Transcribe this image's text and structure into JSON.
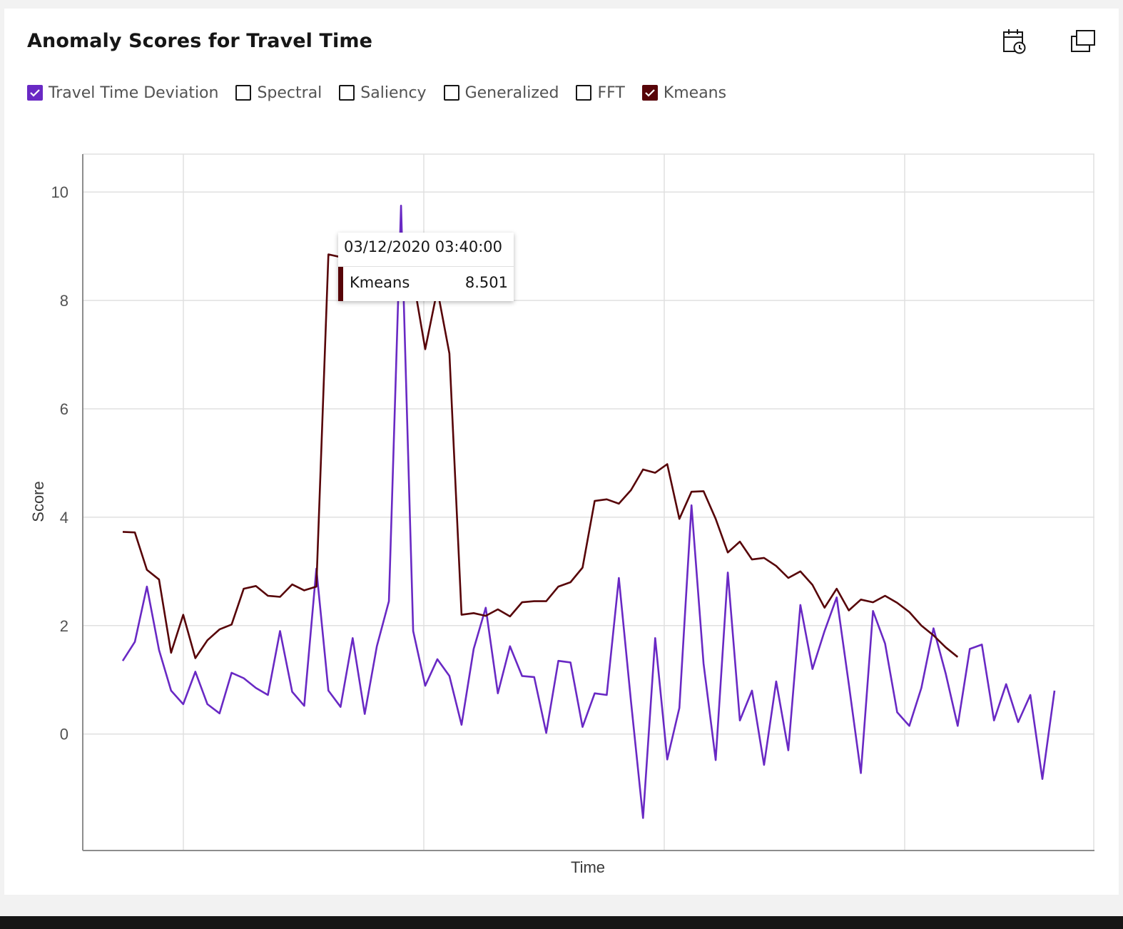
{
  "card": {
    "title": "Anomaly Scores for Travel Time",
    "icons": {
      "calendar": "calendar-clock-icon",
      "expand": "expand-window-icon"
    }
  },
  "legend": [
    {
      "label": "Travel Time Deviation",
      "checked": true,
      "color": "#6929c4"
    },
    {
      "label": "Spectral",
      "checked": false,
      "color": "#161616"
    },
    {
      "label": "Saliency",
      "checked": false,
      "color": "#161616"
    },
    {
      "label": "Generalized",
      "checked": false,
      "color": "#161616"
    },
    {
      "label": "FFT",
      "checked": false,
      "color": "#161616"
    },
    {
      "label": "Kmeans",
      "checked": true,
      "color": "#570408"
    }
  ],
  "tooltip": {
    "date": "03/12/2020 03:40:00",
    "series": "Kmeans",
    "value": "8.501",
    "color": "#570408"
  },
  "chart_data": {
    "type": "line",
    "xlabel": "Time",
    "ylabel": "Score",
    "ylim": [
      -2.15,
      10.7
    ],
    "yticks": [
      0,
      2,
      4,
      6,
      8,
      10
    ],
    "grid": true,
    "legend_position": "top-left",
    "series": [
      {
        "name": "Travel Time Deviation",
        "color": "#6929c4",
        "points": [
          [
            0,
            1.35
          ],
          [
            1,
            1.7
          ],
          [
            2,
            2.72
          ],
          [
            3,
            1.55
          ],
          [
            4,
            0.8
          ],
          [
            5,
            0.55
          ],
          [
            6,
            1.15
          ],
          [
            7,
            0.55
          ],
          [
            8,
            0.38
          ],
          [
            9,
            1.13
          ],
          [
            10,
            1.03
          ],
          [
            11,
            0.85
          ],
          [
            12,
            0.72
          ],
          [
            13,
            1.9
          ],
          [
            14,
            0.78
          ],
          [
            15,
            0.52
          ],
          [
            16,
            3.05
          ],
          [
            17,
            0.8
          ],
          [
            18,
            0.5
          ],
          [
            19,
            1.77
          ],
          [
            20,
            0.37
          ],
          [
            21,
            1.62
          ],
          [
            22,
            2.45
          ],
          [
            23,
            9.75
          ],
          [
            24,
            1.9
          ],
          [
            25,
            0.89
          ],
          [
            26,
            1.38
          ],
          [
            27,
            1.07
          ],
          [
            28,
            0.17
          ],
          [
            29,
            1.57
          ],
          [
            30,
            2.33
          ],
          [
            31,
            0.75
          ],
          [
            32,
            1.62
          ],
          [
            33,
            1.07
          ],
          [
            34,
            1.05
          ],
          [
            35,
            0.02
          ],
          [
            36,
            1.35
          ],
          [
            37,
            1.32
          ],
          [
            38,
            0.13
          ],
          [
            39,
            0.75
          ],
          [
            40,
            0.72
          ],
          [
            41,
            2.88
          ],
          [
            42,
            0.6
          ],
          [
            43,
            -1.55
          ],
          [
            44,
            1.77
          ],
          [
            45,
            -0.47
          ],
          [
            46,
            0.48
          ],
          [
            47,
            4.22
          ],
          [
            48,
            1.3
          ],
          [
            49,
            -0.48
          ],
          [
            50,
            2.98
          ],
          [
            51,
            0.25
          ],
          [
            52,
            0.8
          ],
          [
            53,
            -0.57
          ],
          [
            54,
            0.97
          ],
          [
            55,
            -0.3
          ],
          [
            56,
            2.38
          ],
          [
            57,
            1.2
          ],
          [
            58,
            1.9
          ],
          [
            59,
            2.52
          ],
          [
            60,
            0.92
          ],
          [
            61,
            -0.72
          ],
          [
            62,
            2.27
          ],
          [
            63,
            1.67
          ],
          [
            64,
            0.4
          ],
          [
            65,
            0.15
          ],
          [
            66,
            0.85
          ],
          [
            67,
            1.95
          ],
          [
            68,
            1.12
          ],
          [
            69,
            0.15
          ],
          [
            70,
            1.57
          ],
          [
            71,
            1.65
          ],
          [
            72,
            0.25
          ],
          [
            73,
            0.92
          ],
          [
            74,
            0.22
          ],
          [
            75,
            0.72
          ],
          [
            76,
            -0.83
          ],
          [
            77,
            0.8
          ]
        ]
      },
      {
        "name": "Kmeans",
        "color": "#570408",
        "points": [
          [
            0,
            3.73
          ],
          [
            1,
            3.72
          ],
          [
            2,
            3.03
          ],
          [
            3,
            2.85
          ],
          [
            4,
            1.5
          ],
          [
            5,
            2.2
          ],
          [
            6,
            1.4
          ],
          [
            7,
            1.73
          ],
          [
            8,
            1.93
          ],
          [
            9,
            2.02
          ],
          [
            10,
            2.68
          ],
          [
            11,
            2.73
          ],
          [
            12,
            2.55
          ],
          [
            13,
            2.53
          ],
          [
            14,
            2.76
          ],
          [
            15,
            2.65
          ],
          [
            16,
            2.72
          ],
          [
            17,
            8.85
          ],
          [
            18,
            8.8
          ],
          [
            19,
            8.65
          ],
          [
            20,
            8.57
          ],
          [
            21,
            8.45
          ],
          [
            22,
            8.45
          ],
          [
            23,
            8.5
          ],
          [
            24,
            8.4
          ],
          [
            25,
            7.1
          ],
          [
            26,
            8.2
          ],
          [
            27,
            7.02
          ],
          [
            28,
            2.2
          ],
          [
            29,
            2.23
          ],
          [
            30,
            2.18
          ],
          [
            31,
            2.3
          ],
          [
            32,
            2.17
          ],
          [
            33,
            2.43
          ],
          [
            34,
            2.45
          ],
          [
            35,
            2.45
          ],
          [
            36,
            2.72
          ],
          [
            37,
            2.8
          ],
          [
            38,
            3.07
          ],
          [
            39,
            4.3
          ],
          [
            40,
            4.33
          ],
          [
            41,
            4.25
          ],
          [
            42,
            4.5
          ],
          [
            43,
            4.88
          ],
          [
            44,
            4.82
          ],
          [
            45,
            4.98
          ],
          [
            46,
            3.97
          ],
          [
            47,
            4.47
          ],
          [
            48,
            4.48
          ],
          [
            49,
            3.97
          ],
          [
            50,
            3.35
          ],
          [
            51,
            3.55
          ],
          [
            52,
            3.22
          ],
          [
            53,
            3.25
          ],
          [
            54,
            3.1
          ],
          [
            55,
            2.88
          ],
          [
            56,
            3.0
          ],
          [
            57,
            2.75
          ],
          [
            58,
            2.33
          ],
          [
            59,
            2.68
          ],
          [
            60,
            2.28
          ],
          [
            61,
            2.48
          ],
          [
            62,
            2.43
          ],
          [
            63,
            2.55
          ],
          [
            64,
            2.42
          ],
          [
            65,
            2.25
          ],
          [
            66,
            2.0
          ],
          [
            67,
            1.82
          ],
          [
            68,
            1.6
          ],
          [
            69,
            1.42
          ]
        ]
      }
    ]
  }
}
